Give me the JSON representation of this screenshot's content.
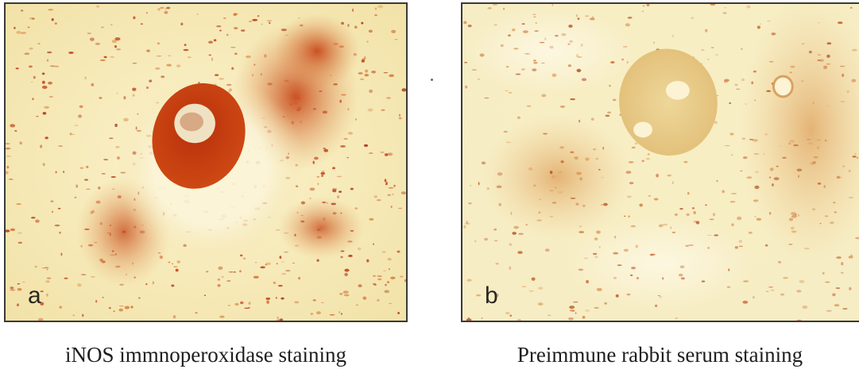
{
  "panels": [
    {
      "letter": "a",
      "caption": "iNOS immnoperoxidase staining"
    },
    {
      "letter": "b",
      "caption": "Preimmune rabbit serum staining"
    }
  ],
  "colors": {
    "background_tissue": "#f7edbc",
    "stain_strong": "#c4380e",
    "stain_light": "#e0b070",
    "frame": "#3a3a36"
  }
}
